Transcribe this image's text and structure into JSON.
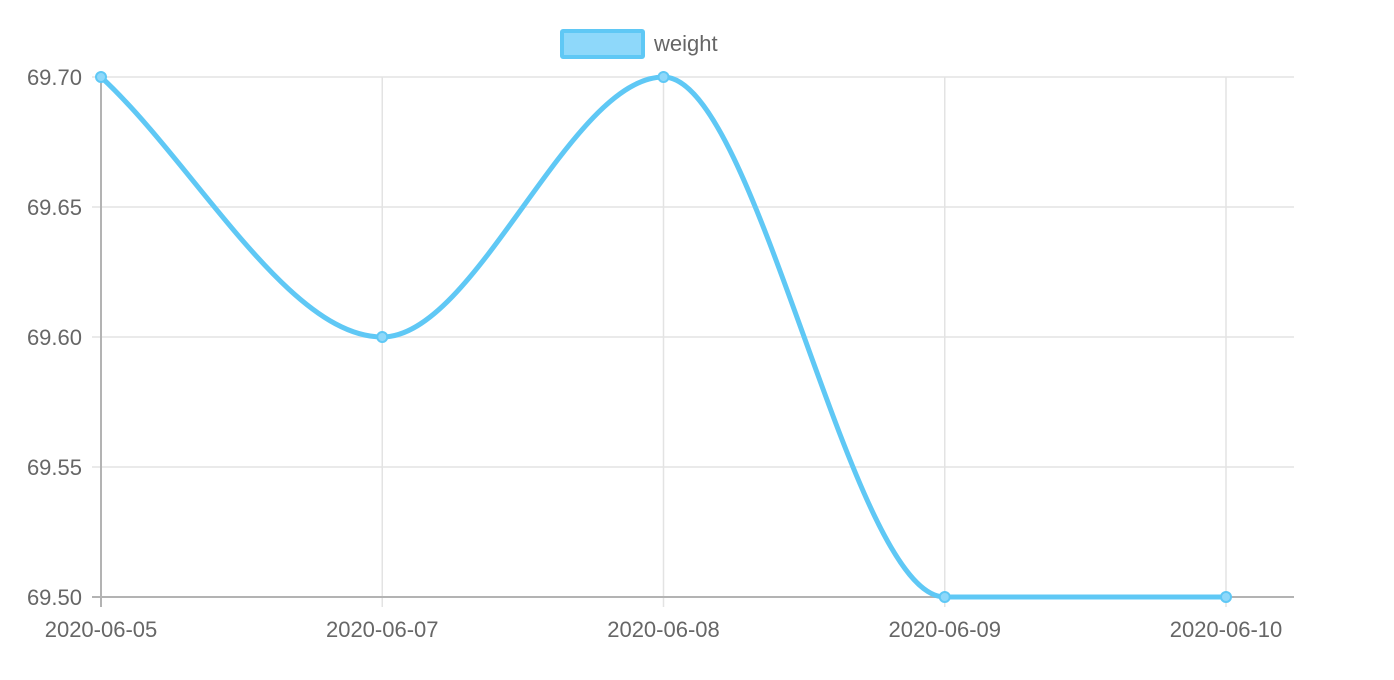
{
  "chart_data": {
    "type": "line",
    "categories": [
      "2020-06-05",
      "2020-06-07",
      "2020-06-08",
      "2020-06-09",
      "2020-06-10"
    ],
    "series": [
      {
        "name": "weight",
        "values": [
          69.7,
          69.6,
          69.7,
          69.5,
          69.5
        ]
      }
    ],
    "ylim": [
      69.5,
      69.7
    ],
    "yticks": [
      "69.70",
      "69.65",
      "69.60",
      "69.55",
      "69.50"
    ],
    "grid": true,
    "legend_position": "top",
    "colors": {
      "line": "#5fc8f5",
      "fill": "#8ed8fa",
      "grid": "#e3e3e3",
      "axis": "#b3b3b3",
      "text": "#666666"
    }
  }
}
